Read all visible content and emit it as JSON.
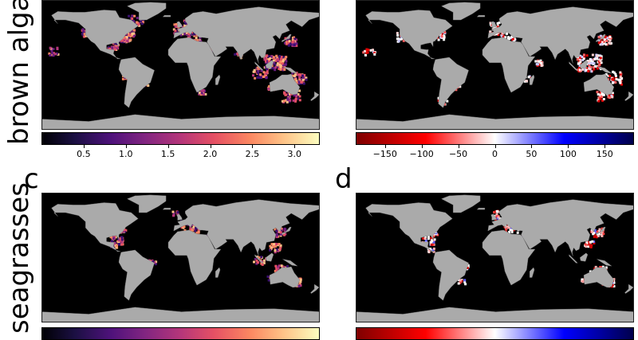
{
  "rows": {
    "top_label": "brown algae",
    "bottom_label": "seagrasses"
  },
  "panels": {
    "c_letter": "c",
    "d_letter": "d"
  },
  "colorbars": {
    "magnitude": {
      "colormap": "magma",
      "ticks": [
        "0.5",
        "1.0",
        "1.5",
        "2.0",
        "2.5",
        "3.0"
      ],
      "tick_values": [
        0.5,
        1.0,
        1.5,
        2.0,
        2.5,
        3.0
      ],
      "range": [
        0.0,
        3.3
      ]
    },
    "change": {
      "colormap": "seismic_r",
      "ticks": [
        "−150",
        "−100",
        "−50",
        "0",
        "50",
        "100",
        "150"
      ],
      "tick_values": [
        -150,
        -100,
        -50,
        0,
        50,
        100,
        150
      ],
      "range": [
        -190,
        190
      ]
    }
  },
  "colors": {
    "ocean": "#000000",
    "land": "#aaaaaa",
    "magma_high": "#fcfdbf",
    "magma_mid": "#d3436e",
    "magma_low": "#3b0f70",
    "loss": "#c00000",
    "gain": "#00008b"
  }
}
